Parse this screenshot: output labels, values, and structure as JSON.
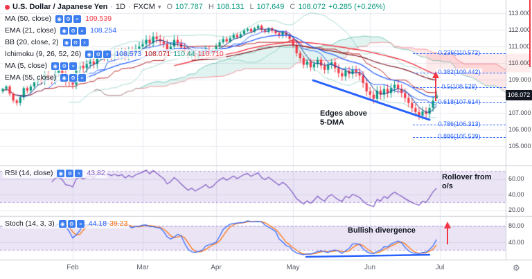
{
  "colors": {
    "up": "#089981",
    "down": "#f23645",
    "accent_blue": "#2962ff",
    "ma50": "#f23645",
    "ema21": "#2962ff",
    "ma5": "#0b3d91",
    "ema55": "#801922",
    "bb": "rgba(8,153,129,0.35)",
    "cloud_up": "rgba(8,153,129,0.12)",
    "cloud_down": "rgba(242,54,69,0.12)",
    "ichimoku_conversion": "#2962ff",
    "ichimoku_base": "#b71c1c",
    "ichimoku_leadA": "#089981",
    "ichimoku_leadB": "#f23645",
    "rsi": "#7e57c2",
    "stoch_k": "#2962ff",
    "stoch_d": "#ff6d00",
    "band_fill": "rgba(126,87,194,0.16)",
    "band_edge": "rgba(126,87,194,0.55)",
    "grid": "#e8eaf0",
    "separator": "#c9ccd3",
    "zone_pink": "rgba(242,54,69,0.10)",
    "badge_bg": "#131722",
    "fib": "#2962ff",
    "annotation": "#131722"
  },
  "header": {
    "symbol": "U.S. Dollar / Japanese Yen",
    "separator": "·",
    "interval": "1D",
    "exchange": "FXCM",
    "chevron": "▾",
    "ohlc": {
      "o_label": "O",
      "o": "107.787",
      "h_label": "H",
      "h": "108.131",
      "l_label": "L",
      "l": "107.649",
      "c_label": "C",
      "c": "108.072",
      "change": "+0.285 (+0.26%)"
    }
  },
  "legend": {
    "icons": {
      "eye": "◉",
      "settings": "⚙",
      "close": "×"
    },
    "rows": [
      {
        "label": "MA (50, close)",
        "v1": "109.539"
      },
      {
        "label": "EMA (21, close)",
        "v1": "108.254"
      },
      {
        "label": "BB (20, close, 2)",
        "v1": ""
      },
      {
        "label": "Ichimoku (9, 26, 52, 26)",
        "v1": "108.573",
        "v2": "108.071",
        "v3": "110.44",
        "v4": "110.710"
      },
      {
        "label": "MA (5, close)",
        "v1": ""
      },
      {
        "label": "EMA (55, close)",
        "v1": ""
      }
    ]
  },
  "rsi_pane": {
    "label": "RSI (14, close)",
    "value": "43.82",
    "ticks": [
      "60.00",
      "40.00",
      "20.00"
    ]
  },
  "stoch_pane": {
    "label": "Stoch (14, 3, 3)",
    "k": "44.18",
    "d": "39.23",
    "ticks": [
      "80.00",
      "40.00"
    ]
  },
  "fib": {
    "levels": [
      {
        "label": "0.236(110.572)"
      },
      {
        "label": "0.382(109.442)"
      },
      {
        "label": "0.5(108.528)"
      },
      {
        "label": "0.618(107.614)"
      },
      {
        "label": "0.786(106.313)"
      },
      {
        "label": "0.886(105.539)"
      }
    ]
  },
  "annotations": {
    "price_l1": "Edges above",
    "price_l2": "5-DMA",
    "rsi_l1": "Rollover from",
    "rsi_l2": "o/s",
    "stoch": "Bullish divergence"
  },
  "price_scale": {
    "ticks": [
      "113.000",
      "112.000",
      "111.000",
      "110.000",
      "109.000",
      "108.000",
      "107.000",
      "106.000",
      "105.000"
    ],
    "last": "108.072"
  },
  "time_axis": {
    "months": [
      "Feb",
      "Mar",
      "Apr",
      "May",
      "Jun",
      "Jul"
    ]
  },
  "footer": {
    "settings_icon": "⚙"
  },
  "chart_data": {
    "type": "candlestick",
    "title": "USD/JPY 1D (FXCM) with MA50, EMA21, BB(20,2), Ichimoku(9,26,52,26), MA5, EMA55 overlays; RSI(14) and Stoch(14,3,3) panes; Fibonacci retracement levels",
    "x_axis": {
      "unit": "month",
      "labels": [
        "Feb",
        "Mar",
        "Apr",
        "May",
        "Jun",
        "Jul"
      ],
      "month_start_indices": [
        20,
        40,
        61,
        83,
        105,
        125
      ]
    },
    "y_axis": {
      "range": [
        104.8,
        113.6
      ],
      "ticks": [
        113,
        112,
        111,
        110,
        109,
        108,
        107,
        106,
        105
      ]
    },
    "last_price": 108.072,
    "candles": {
      "first_open": 108.3,
      "closes": [
        108.45,
        108.6,
        108.15,
        107.75,
        107.6,
        107.95,
        108.5,
        108.35,
        108.6,
        108.85,
        109.05,
        108.9,
        109.35,
        109.1,
        108.95,
        109.4,
        109.55,
        109.35,
        108.9,
        108.85,
        108.7,
        109.6,
        109.85,
        109.7,
        109.95,
        110.1,
        109.95,
        110.45,
        110.5,
        110.4,
        110.55,
        110.45,
        110.6,
        110.5,
        110.65,
        110.45,
        110.7,
        110.6,
        110.85,
        111.0,
        111.15,
        111.4,
        111.2,
        111.6,
        111.45,
        111.3,
        111.15,
        110.8,
        111.0,
        111.4,
        111.2,
        110.95,
        110.7,
        110.45,
        110.6,
        110.35,
        110.5,
        110.65,
        110.85,
        110.6,
        110.7,
        111.0,
        111.25,
        111.45,
        111.3,
        111.5,
        111.7,
        111.55,
        111.75,
        111.95,
        112.05,
        111.9,
        112.1,
        112.25,
        112.0,
        111.9,
        112.1,
        111.95,
        111.8,
        111.65,
        111.85,
        111.7,
        111.45,
        111.1,
        110.6,
        110.3,
        109.9,
        110.1,
        109.75,
        109.95,
        110.2,
        109.85,
        109.6,
        109.9,
        110.05,
        109.7,
        109.4,
        109.2,
        109.55,
        109.35,
        109.6,
        109.45,
        109.25,
        108.8,
        108.3,
        108.1,
        107.85,
        108.35,
        108.1,
        108.45,
        108.2,
        108.5,
        108.7,
        108.45,
        108.2,
        107.9,
        107.6,
        107.3,
        107.05,
        106.85,
        107.1,
        106.95,
        107.3,
        107.75,
        108.07
      ]
    },
    "indicator_values": {
      "ma50": 109.539,
      "ema21": 108.254,
      "ichimoku": [
        108.573,
        108.071,
        110.44,
        110.71
      ],
      "rsi": 43.82,
      "stoch_k": 44.18,
      "stoch_d": 39.23
    },
    "fib_levels": [
      {
        "ratio": 0.236,
        "price": 110.572
      },
      {
        "ratio": 0.382,
        "price": 109.442
      },
      {
        "ratio": 0.5,
        "price": 108.528
      },
      {
        "ratio": 0.618,
        "price": 107.614
      },
      {
        "ratio": 0.786,
        "price": 106.313
      },
      {
        "ratio": 0.886,
        "price": 105.539
      }
    ],
    "rsi_pane": {
      "ticks": [
        60,
        40,
        20
      ],
      "band": [
        30,
        70
      ]
    },
    "stoch_pane": {
      "ticks": [
        80,
        40
      ],
      "band": [
        20,
        80
      ]
    }
  }
}
